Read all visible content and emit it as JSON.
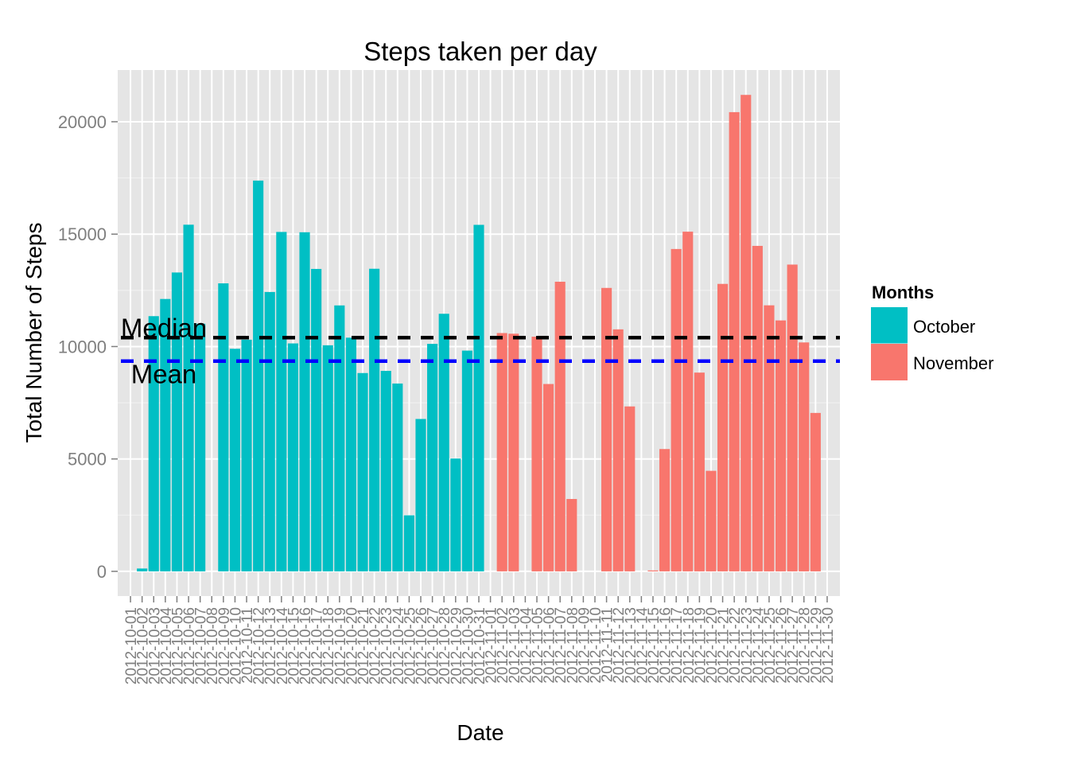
{
  "chart_data": {
    "type": "bar",
    "title": "Steps taken per day",
    "xlabel": "Date",
    "ylabel": "Total Number of Steps",
    "ylim": [
      -1100,
      22300
    ],
    "yticks": [
      0,
      5000,
      10000,
      15000,
      20000
    ],
    "grid": true,
    "legend": {
      "title": "Months",
      "position": "right",
      "entries": [
        {
          "name": "October",
          "color": "#00bfc4"
        },
        {
          "name": "November",
          "color": "#f8766d"
        }
      ]
    },
    "categories": [
      "2012-10-01",
      "2012-10-02",
      "2012-10-03",
      "2012-10-04",
      "2012-10-05",
      "2012-10-06",
      "2012-10-07",
      "2012-10-08",
      "2012-10-09",
      "2012-10-10",
      "2012-10-11",
      "2012-10-12",
      "2012-10-13",
      "2012-10-14",
      "2012-10-15",
      "2012-10-16",
      "2012-10-17",
      "2012-10-18",
      "2012-10-19",
      "2012-10-20",
      "2012-10-21",
      "2012-10-22",
      "2012-10-23",
      "2012-10-24",
      "2012-10-25",
      "2012-10-26",
      "2012-10-27",
      "2012-10-28",
      "2012-10-29",
      "2012-10-30",
      "2012-10-31",
      "2012-11-01",
      "2012-11-02",
      "2012-11-03",
      "2012-11-04",
      "2012-11-05",
      "2012-11-06",
      "2012-11-07",
      "2012-11-08",
      "2012-11-09",
      "2012-11-10",
      "2012-11-11",
      "2012-11-12",
      "2012-11-13",
      "2012-11-14",
      "2012-11-15",
      "2012-11-16",
      "2012-11-17",
      "2012-11-18",
      "2012-11-19",
      "2012-11-20",
      "2012-11-21",
      "2012-11-22",
      "2012-11-23",
      "2012-11-24",
      "2012-11-25",
      "2012-11-26",
      "2012-11-27",
      "2012-11-28",
      "2012-11-29",
      "2012-11-30"
    ],
    "series": [
      {
        "name": "October",
        "color": "#00bfc4",
        "values": [
          null,
          126,
          11352,
          12116,
          13294,
          15420,
          11015,
          null,
          12811,
          9900,
          10304,
          17382,
          12426,
          15098,
          10139,
          15084,
          13452,
          10056,
          11829,
          10395,
          8821,
          13460,
          8918,
          8355,
          2492,
          6778,
          10119,
          11458,
          5018,
          9819,
          15414,
          null,
          null,
          null,
          null,
          null,
          null,
          null,
          null,
          null,
          null,
          null,
          null,
          null,
          null,
          null,
          null,
          null,
          null,
          null,
          null,
          null,
          null,
          null,
          null,
          null,
          null,
          null,
          null,
          null,
          null
        ]
      },
      {
        "name": "November",
        "color": "#f8766d",
        "values": [
          null,
          null,
          null,
          null,
          null,
          null,
          null,
          null,
          null,
          null,
          null,
          null,
          null,
          null,
          null,
          null,
          null,
          null,
          null,
          null,
          null,
          null,
          null,
          null,
          null,
          null,
          null,
          null,
          null,
          null,
          null,
          null,
          10600,
          10571,
          null,
          10439,
          8334,
          12883,
          3219,
          null,
          null,
          12608,
          10765,
          7336,
          null,
          41,
          5441,
          14339,
          15110,
          8841,
          4472,
          12787,
          20427,
          21194,
          14478,
          11834,
          11162,
          13646,
          10183,
          7047,
          null
        ]
      }
    ],
    "reference_lines": [
      {
        "label": "Median",
        "value": 10395,
        "color": "#000000"
      },
      {
        "label": "Mean",
        "value": 9354,
        "color": "#0000ff"
      }
    ]
  }
}
